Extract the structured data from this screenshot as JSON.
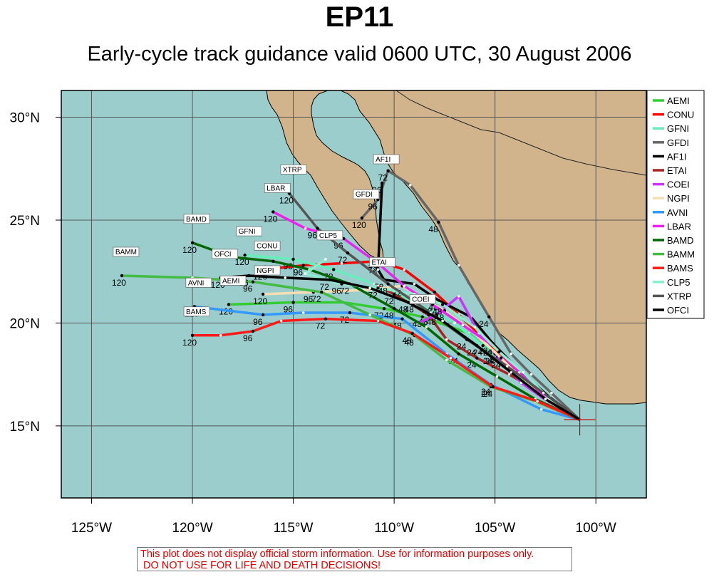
{
  "title": "EP11",
  "subtitle": "Early-cycle track guidance valid 0600 UTC, 30 August 2006",
  "disclaimer_line1": "This plot does not display official storm information. Use for information purposes only.",
  "disclaimer_line2": " DO NOT USE FOR LIFE AND DEATH DECISIONS!",
  "colors": {
    "ocean": "#9ccdcd",
    "land": "#d2b48c",
    "grid": "#555555",
    "storm": "#cc0000"
  },
  "chart_data": {
    "type": "line",
    "xlim": [
      -126.5,
      -97.5
    ],
    "ylim": [
      11.5,
      31.3
    ],
    "x_ticks": [
      -125,
      -120,
      -115,
      -110,
      -105,
      -100
    ],
    "x_tick_labels": [
      "125°W",
      "120°W",
      "115°W",
      "110°W",
      "105°W",
      "100°W"
    ],
    "y_ticks": [
      15,
      20,
      25,
      30
    ],
    "y_tick_labels": [
      "15°N",
      "20°N",
      "25°N",
      "30°N"
    ],
    "grid": true,
    "legend_position": "right",
    "storm_position": [
      -100.8,
      15.3
    ],
    "series": [
      {
        "name": "AEMI",
        "color": "#33cc33",
        "points": [
          [
            -100.8,
            15.3
          ],
          [
            -102.5,
            16.3
          ],
          [
            -103.9,
            17.4
          ],
          [
            -105.1,
            18.5
          ],
          [
            -106.3,
            19.5
          ],
          [
            -108.6,
            20.3
          ],
          [
            -110.5,
            20.7
          ],
          [
            -112.5,
            21.0
          ],
          [
            -115,
            21.0
          ],
          [
            -118.2,
            20.9
          ]
        ],
        "labels": [
          {
            "p": 3,
            "t": "24"
          },
          {
            "p": 5,
            "t": "48"
          },
          {
            "p": 6,
            "t": "72"
          },
          {
            "p": 8,
            "t": "96"
          },
          {
            "p": 9,
            "t": "120"
          }
        ]
      },
      {
        "name": "CONU",
        "color": "#ff0000",
        "points": [
          [
            -100.8,
            15.3
          ],
          [
            -102.6,
            16.5
          ],
          [
            -104.0,
            17.7
          ],
          [
            -105.3,
            19.0
          ],
          [
            -106.8,
            20.4
          ],
          [
            -108.0,
            21.5
          ],
          [
            -109.5,
            22.6
          ],
          [
            -110.8,
            23.0
          ],
          [
            -112.6,
            22.9
          ],
          [
            -114.5,
            22.8
          ],
          [
            -116.5,
            22.6
          ]
        ],
        "labels": [
          {
            "p": 3,
            "t": "24"
          },
          {
            "p": 5,
            "t": "48"
          },
          {
            "p": 7,
            "t": "72"
          },
          {
            "p": 9,
            "t": "96"
          },
          {
            "p": 10,
            "t": "120"
          }
        ]
      },
      {
        "name": "GFNI",
        "color": "#66eebb",
        "points": [
          [
            -100.8,
            15.3
          ],
          [
            -102.5,
            16.4
          ],
          [
            -104.1,
            17.6
          ],
          [
            -105.6,
            18.9
          ],
          [
            -107.0,
            20.0
          ],
          [
            -109.0,
            21.0
          ],
          [
            -111.0,
            21.9
          ],
          [
            -113.0,
            22.6
          ],
          [
            -115.0,
            23.1
          ],
          [
            -117.4,
            23.3
          ]
        ],
        "labels": [
          {
            "p": 3,
            "t": "24"
          },
          {
            "p": 5,
            "t": "48"
          },
          {
            "p": 7,
            "t": "72"
          },
          {
            "p": 8,
            "t": "96"
          },
          {
            "p": 9,
            "t": "120"
          }
        ]
      },
      {
        "name": "GFDI",
        "color": "#666666",
        "points": [
          [
            -100.8,
            15.3
          ],
          [
            -102.2,
            16.6
          ],
          [
            -103.2,
            17.5
          ],
          [
            -104.2,
            18.5
          ],
          [
            -105.3,
            20.3
          ],
          [
            -106.8,
            22.8
          ],
          [
            -107.8,
            24.9
          ],
          [
            -109.2,
            26.7
          ],
          [
            -110.3,
            27.4
          ],
          [
            -110.8,
            26.0
          ],
          [
            -111.6,
            25.1
          ]
        ],
        "labels": [
          {
            "p": 4,
            "t": "24"
          },
          {
            "p": 6,
            "t": "48"
          },
          {
            "p": 8,
            "t": "72"
          },
          {
            "p": 9,
            "t": "96"
          },
          {
            "p": 10,
            "t": "120"
          }
        ]
      },
      {
        "name": "AF1I",
        "color": "#000000",
        "points": [
          [
            -100.8,
            15.3
          ],
          [
            -102.3,
            16.4
          ],
          [
            -103.7,
            17.6
          ],
          [
            -105.1,
            19.0
          ],
          [
            -106.2,
            20.3
          ],
          [
            -107.8,
            21.1
          ],
          [
            -109.0,
            21.9
          ],
          [
            -110.5,
            22.1
          ],
          [
            -110.8,
            22.6
          ],
          [
            -110.6,
            26.8
          ]
        ],
        "labels": [
          {
            "p": 3,
            "t": "24"
          },
          {
            "p": 5,
            "t": "48"
          },
          {
            "p": 7,
            "t": "72"
          },
          {
            "p": 9,
            "t": "96"
          }
        ]
      },
      {
        "name": "ETAI",
        "color": "#aa2222",
        "points": [
          [
            -100.8,
            15.3
          ],
          [
            -102.7,
            16.6
          ],
          [
            -104.3,
            17.5
          ],
          [
            -105.9,
            18.3
          ],
          [
            -107.4,
            19.2
          ],
          [
            -108.3,
            20.4
          ],
          [
            -109.3,
            21.0
          ],
          [
            -110.0,
            21.4
          ],
          [
            -110.8,
            21.8
          ]
        ],
        "labels": [
          {
            "p": 3,
            "t": "24"
          },
          {
            "p": 5,
            "t": "48"
          },
          {
            "p": 7,
            "t": "72"
          }
        ]
      },
      {
        "name": "COEI",
        "color": "#cc33ff",
        "points": [
          [
            -100.8,
            15.3
          ],
          [
            -102.4,
            16.2
          ],
          [
            -103.7,
            17.1
          ],
          [
            -105.0,
            18.5
          ],
          [
            -105.8,
            19.5
          ],
          [
            -106.8,
            21.3
          ],
          [
            -107.9,
            20.4
          ],
          [
            -108.8,
            20.0
          ]
        ],
        "labels": [
          {
            "p": 3,
            "t": "24"
          },
          {
            "p": 6,
            "t": "48"
          }
        ]
      },
      {
        "name": "NGPI",
        "color": "#f5deb3",
        "points": [
          [
            -100.8,
            15.3
          ],
          [
            -102.2,
            16.1
          ],
          [
            -103.5,
            17.1
          ],
          [
            -104.7,
            18.3
          ],
          [
            -106.0,
            19.5
          ],
          [
            -107.5,
            20.6
          ],
          [
            -109.6,
            21.8
          ],
          [
            -111.5,
            21.6
          ],
          [
            -114.0,
            21.5
          ],
          [
            -116.5,
            21.4
          ]
        ],
        "labels": [
          {
            "p": 3,
            "t": "24"
          },
          {
            "p": 5,
            "t": "48"
          },
          {
            "p": 6,
            "t": "72"
          },
          {
            "p": 8,
            "t": "96"
          },
          {
            "p": 9,
            "t": "120"
          }
        ]
      },
      {
        "name": "AVNI",
        "color": "#3399ff",
        "points": [
          [
            -100.8,
            15.3
          ],
          [
            -102.7,
            15.8
          ],
          [
            -105.2,
            17.0
          ],
          [
            -107.4,
            18.5
          ],
          [
            -109.6,
            20.2
          ],
          [
            -112.2,
            20.5
          ],
          [
            -114.5,
            20.5
          ],
          [
            -116.5,
            20.4
          ],
          [
            -119.9,
            20.8
          ]
        ],
        "labels": [
          {
            "p": 2,
            "t": "24"
          },
          {
            "p": 4,
            "t": "48"
          },
          {
            "p": 5,
            "t": "72"
          },
          {
            "p": 7,
            "t": "96"
          },
          {
            "p": 8,
            "t": "120"
          }
        ]
      },
      {
        "name": "LBAR",
        "color": "#ee22ee",
        "points": [
          [
            -100.8,
            15.3
          ],
          [
            -102.4,
            16.3
          ],
          [
            -103.8,
            17.6
          ],
          [
            -105.1,
            18.9
          ],
          [
            -106.6,
            19.9
          ],
          [
            -108.1,
            20.9
          ],
          [
            -109.5,
            21.8
          ],
          [
            -110.8,
            22.9
          ],
          [
            -112.5,
            24.1
          ],
          [
            -114.4,
            24.6
          ],
          [
            -116.0,
            25.4
          ]
        ],
        "labels": [
          {
            "p": 3,
            "t": "24"
          },
          {
            "p": 5,
            "t": "48"
          },
          {
            "p": 7,
            "t": "72"
          },
          {
            "p": 8,
            "t": "96"
          },
          {
            "p": 10,
            "t": "120"
          }
        ]
      },
      {
        "name": "BAMD",
        "color": "#006600",
        "points": [
          [
            -100.8,
            15.3
          ],
          [
            -103.0,
            16.3
          ],
          [
            -104.9,
            17.4
          ],
          [
            -106.8,
            18.5
          ],
          [
            -108.4,
            19.8
          ],
          [
            -110.0,
            20.7
          ],
          [
            -112.2,
            21.9
          ],
          [
            -114.2,
            22.6
          ],
          [
            -116.0,
            23.0
          ],
          [
            -118.0,
            23.2
          ],
          [
            -120.0,
            23.9
          ]
        ],
        "labels": [
          {
            "p": 3,
            "t": "24"
          },
          {
            "p": 5,
            "t": "48"
          },
          {
            "p": 6,
            "t": "72"
          },
          {
            "p": 8,
            "t": "96"
          },
          {
            "p": 10,
            "t": "120"
          }
        ]
      },
      {
        "name": "BAMM",
        "color": "#44bb44",
        "points": [
          [
            -100.8,
            15.3
          ],
          [
            -103.0,
            16.2
          ],
          [
            -105.2,
            16.9
          ],
          [
            -107.4,
            18.2
          ],
          [
            -109.0,
            19.4
          ],
          [
            -111.2,
            20.4
          ],
          [
            -113.6,
            21.5
          ],
          [
            -117.0,
            22.0
          ],
          [
            -120.0,
            22.2
          ],
          [
            -123.5,
            22.3
          ]
        ],
        "labels": [
          {
            "p": 2,
            "t": "24"
          },
          {
            "p": 4,
            "t": "48"
          },
          {
            "p": 6,
            "t": "72"
          },
          {
            "p": 7,
            "t": "96"
          },
          {
            "p": 9,
            "t": "120"
          }
        ]
      },
      {
        "name": "BAMS",
        "color": "#ff1a1a",
        "points": [
          [
            -100.8,
            15.3
          ],
          [
            -102.9,
            16.2
          ],
          [
            -105.1,
            16.9
          ],
          [
            -107.2,
            18.3
          ],
          [
            -109.1,
            19.5
          ],
          [
            -110.8,
            20.1
          ],
          [
            -113.4,
            20.2
          ],
          [
            -115.6,
            20.1
          ],
          [
            -117.0,
            19.6
          ],
          [
            -118.6,
            19.4
          ],
          [
            -120.0,
            19.4
          ]
        ],
        "labels": [
          {
            "p": 2,
            "t": "24"
          },
          {
            "p": 4,
            "t": "48"
          },
          {
            "p": 6,
            "t": "72"
          },
          {
            "p": 8,
            "t": "96"
          },
          {
            "p": 10,
            "t": "120"
          }
        ]
      },
      {
        "name": "CLP5",
        "color": "#88eecc",
        "points": [
          [
            -100.8,
            15.3
          ],
          [
            -102.3,
            16.3
          ],
          [
            -103.6,
            17.6
          ],
          [
            -104.8,
            18.6
          ],
          [
            -106.0,
            19.8
          ],
          [
            -107.6,
            20.9
          ],
          [
            -109.0,
            21.4
          ],
          [
            -110.8,
            21.7
          ],
          [
            -112.6,
            21.9
          ],
          [
            -114.4,
            22.4
          ],
          [
            -113.4,
            23.1
          ]
        ],
        "labels": [
          {
            "p": 3,
            "t": "24"
          },
          {
            "p": 5,
            "t": "48"
          },
          {
            "p": 7,
            "t": "72"
          },
          {
            "p": 8,
            "t": "96"
          }
        ]
      },
      {
        "name": "XTRP",
        "color": "#555555",
        "points": [
          [
            -100.8,
            15.3
          ],
          [
            -102.6,
            16.6
          ],
          [
            -104.4,
            17.9
          ],
          [
            -106.4,
            19.2
          ],
          [
            -108.2,
            20.5
          ],
          [
            -110.3,
            21.9
          ],
          [
            -112.3,
            23.4
          ],
          [
            -113.8,
            24.6
          ],
          [
            -115.2,
            26.3
          ]
        ],
        "labels": [
          {
            "p": 3,
            "t": "24"
          },
          {
            "p": 5,
            "t": "48"
          },
          {
            "p": 6,
            "t": "72"
          },
          {
            "p": 7,
            "t": "96"
          },
          {
            "p": 8,
            "t": "120"
          }
        ]
      },
      {
        "name": "OFCI",
        "color": "#000000",
        "points": [
          [
            -100.8,
            15.3
          ],
          [
            -102.5,
            16.3
          ],
          [
            -104.2,
            17.6
          ],
          [
            -105.9,
            18.9
          ],
          [
            -107.6,
            20.1
          ],
          [
            -109.3,
            21.0
          ],
          [
            -111.2,
            21.7
          ],
          [
            -113.2,
            22.1
          ],
          [
            -115.4,
            22.2
          ],
          [
            -117.2,
            22.3
          ],
          [
            -118.6,
            22.2
          ]
        ],
        "labels": [
          {
            "p": 3,
            "t": "24"
          },
          {
            "p": 5,
            "t": "48"
          },
          {
            "p": 7,
            "t": "72"
          },
          {
            "p": 9,
            "t": "96"
          },
          {
            "p": 10,
            "t": "120"
          }
        ]
      }
    ]
  }
}
